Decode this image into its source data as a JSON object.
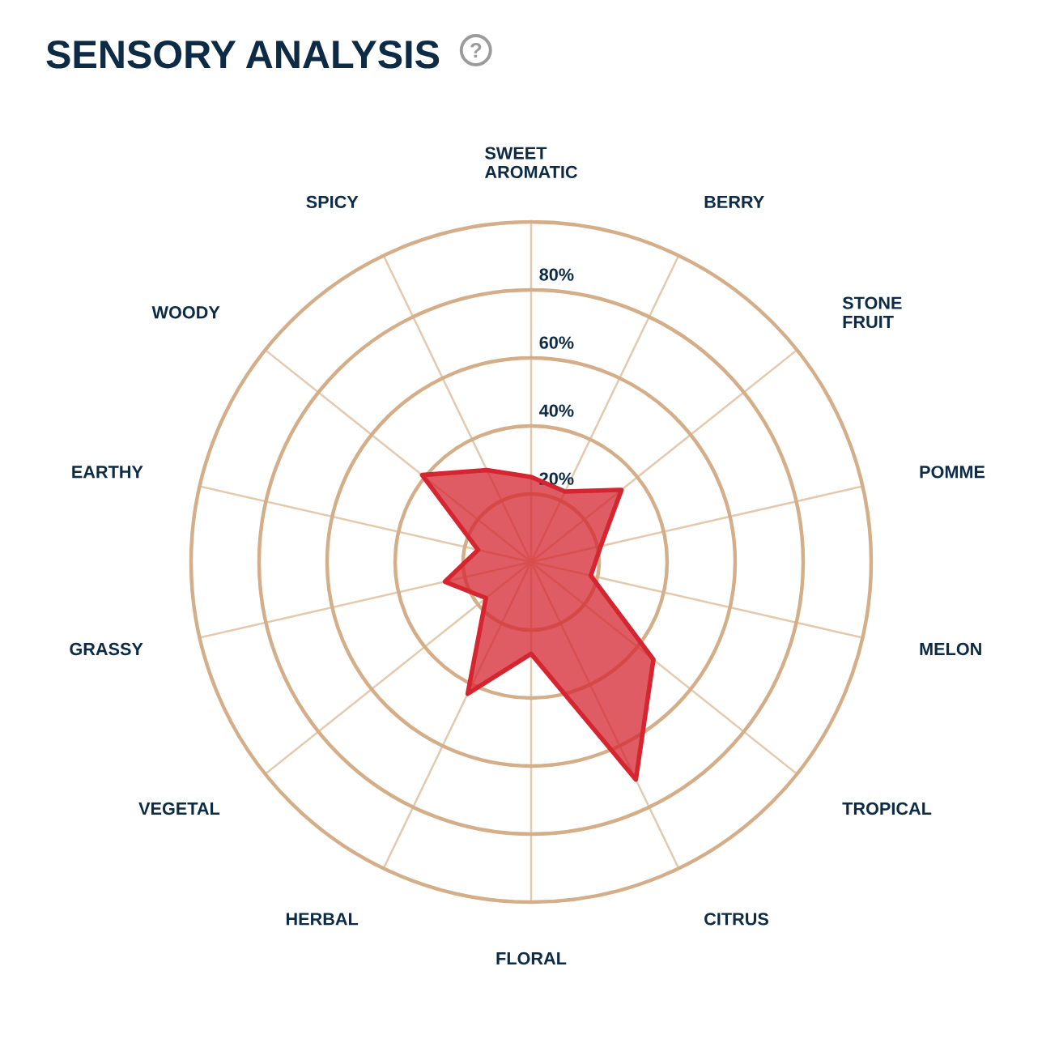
{
  "chart_data": {
    "type": "radar",
    "title": "SENSORY ANALYSIS",
    "categories": [
      "SWEET\nAROMATIC",
      "BERRY",
      "STONE\nFRUIT",
      "POMME",
      "MELON",
      "TROPICAL",
      "CITRUS",
      "FLORAL",
      "HERBAL",
      "VEGETAL",
      "GRASSY",
      "EARTHY",
      "WOODY",
      "SPICY"
    ],
    "series": [
      {
        "color": "#d42530",
        "values": [
          25,
          23,
          34,
          21,
          18,
          46,
          71,
          27,
          43,
          17,
          26,
          16,
          41,
          30
        ]
      }
    ],
    "ylim": [
      0,
      100
    ],
    "yticks": [
      {
        "value": 20,
        "label": "20%"
      },
      {
        "value": 40,
        "label": "40%"
      },
      {
        "value": 60,
        "label": "60%"
      },
      {
        "value": 80,
        "label": "80%"
      }
    ],
    "grid": true
  }
}
